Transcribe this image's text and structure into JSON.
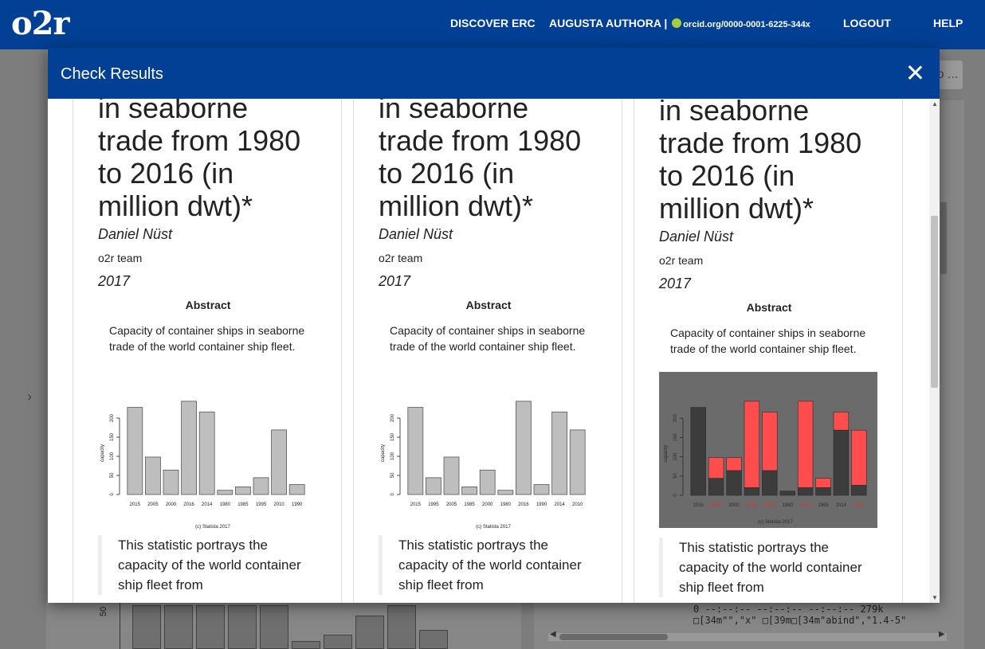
{
  "topbar": {
    "logo": "o2r",
    "nav_discover": "DISCOVER ERC",
    "nav_user": "AUGUSTA AUTHORA |",
    "nav_orcid": "orcid.org/0000-0001-6225-344x",
    "nav_logout": "LOGOUT",
    "nav_help": "HELP"
  },
  "background": {
    "axis_label": "50",
    "console_lines": [
      "0 --:--:-- --:--:-- --:--:-- 279k",
      "□[34m\"\",\"x\" □[39m□[34m\"abind\",\"1.4-5\""
    ],
    "bar_values": [
      55,
      55,
      55,
      55,
      55,
      10,
      18,
      42,
      55,
      24
    ],
    "chevron": "›",
    "button_label": "o ..."
  },
  "modal": {
    "title": "Check Results",
    "columns": [
      {
        "title_lines": [
          "in seaborne",
          "trade from 1980",
          "to 2016 (in",
          "million dwt)*"
        ],
        "author": "Daniel Nüst",
        "affiliation": "o2r team",
        "date": "2017",
        "abstract_heading": "Abstract",
        "abstract": "Capacity of container ships in seaborne trade of the world container ship fleet.",
        "quote": "This statistic portrays the capacity of the world container ship fleet from",
        "chart_data": {
          "type": "bar",
          "categories": [
            "2015",
            "2005",
            "2000",
            "2016",
            "2014",
            "1980",
            "1985",
            "1995",
            "2010",
            "1990"
          ],
          "values": [
            228,
            98,
            64,
            244,
            216,
            11,
            20,
            44,
            169,
            26
          ],
          "ylabel": "capacity",
          "yticks": [
            "0",
            "50",
            "100",
            "150",
            "200"
          ],
          "ylim": [
            0,
            250
          ],
          "caption": "(c) Statista 2017",
          "colors": {
            "bar": "#bebebe",
            "border": "#555555",
            "bg": "#ffffff"
          }
        }
      },
      {
        "title_lines": [
          "in seaborne",
          "trade from 1980",
          "to 2016 (in",
          "million dwt)*"
        ],
        "author": "Daniel Nüst",
        "affiliation": "o2r team",
        "date": "2017",
        "abstract_heading": "Abstract",
        "abstract": "Capacity of container ships in seaborne trade of the world container ship fleet.",
        "quote": "This statistic portrays the capacity of the world container ship fleet from",
        "chart_data": {
          "type": "bar",
          "categories": [
            "2015",
            "1995",
            "2005",
            "1985",
            "2000",
            "1980",
            "2016",
            "1990",
            "2014",
            "2010"
          ],
          "values": [
            228,
            44,
            98,
            20,
            64,
            11,
            244,
            26,
            216,
            169
          ],
          "ylabel": "capacity",
          "yticks": [
            "0",
            "50",
            "100",
            "150",
            "200"
          ],
          "ylim": [
            0,
            250
          ],
          "caption": "(c) Statista 2017",
          "colors": {
            "bar": "#bebebe",
            "border": "#555555",
            "bg": "#ffffff"
          }
        }
      },
      {
        "title_lines": [
          "in seaborne",
          "trade from 1980",
          "to 2016 (in",
          "million dwt)*"
        ],
        "author": "Daniel Nüst",
        "affiliation": "o2r team",
        "date": "2017",
        "abstract_heading": "Abstract",
        "abstract": "Capacity of container ships in seaborne trade of the world container ship fleet.",
        "quote": "This statistic portrays the capacity of the world container ship fleet from",
        "chart_data": {
          "type": "bar",
          "diff": true,
          "categories": [
            "2015",
            "2005",
            "2000",
            "2016",
            "2014",
            "1980",
            "2016",
            "1985",
            "2014",
            "2010"
          ],
          "values_base": [
            228,
            44,
            64,
            20,
            64,
            11,
            20,
            20,
            169,
            26
          ],
          "values_diff": [
            228,
            98,
            98,
            244,
            216,
            11,
            244,
            44,
            216,
            169
          ],
          "ylabel": "capacity",
          "yticks": [
            "0",
            "50",
            "100",
            "150",
            "200"
          ],
          "ylim": [
            0,
            250
          ],
          "caption": "(c) Statista 2017",
          "colors": {
            "bar": "#3c3c3c",
            "diff": "#ff4c4c",
            "bg": "#6b6b6b",
            "text": "#2a2a2a"
          }
        }
      }
    ]
  }
}
